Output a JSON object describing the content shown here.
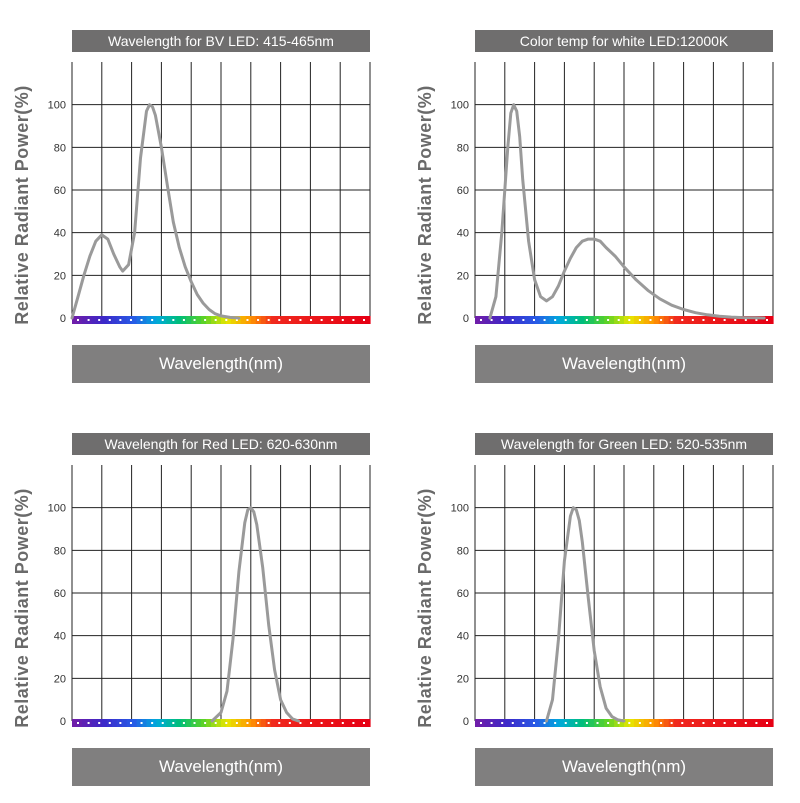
{
  "chart_data": [
    {
      "type": "line",
      "title": "Wavelength for BV LED: 415-465nm",
      "xlabel": "Wavelength(nm)",
      "ylabel": "Relative Radiant Power(%)",
      "ylim": [
        0,
        120
      ],
      "yticks": [
        0,
        20,
        40,
        60,
        80,
        100
      ],
      "x_range": [
        0,
        100
      ],
      "grid": true,
      "series": [
        {
          "name": "BV LED",
          "color": "#9a9a9a",
          "x": [
            0,
            2,
            4,
            6,
            8,
            10,
            12,
            14,
            16,
            17,
            19,
            21,
            23,
            25,
            26,
            27,
            28,
            30,
            32,
            34,
            36,
            38,
            40,
            42,
            44,
            46,
            48,
            50,
            53,
            56
          ],
          "y": [
            0,
            10,
            20,
            29,
            36,
            39,
            37,
            30,
            24,
            22,
            25,
            40,
            75,
            97,
            100,
            99,
            95,
            80,
            62,
            45,
            33,
            24,
            17,
            11,
            7,
            4,
            2,
            1,
            0.3,
            0
          ]
        }
      ]
    },
    {
      "type": "line",
      "title": "Color temp for white LED:12000K",
      "xlabel": "Wavelength(nm)",
      "ylabel": "Relative Radiant Power(%)",
      "ylim": [
        0,
        120
      ],
      "yticks": [
        0,
        20,
        40,
        60,
        80,
        100
      ],
      "x_range": [
        0,
        100
      ],
      "grid": true,
      "series": [
        {
          "name": "White LED 12000K",
          "color": "#9a9a9a",
          "x": [
            5,
            7,
            9,
            11,
            12,
            13,
            14,
            15,
            16,
            18,
            20,
            22,
            24,
            26,
            28,
            30,
            32,
            34,
            36,
            38,
            40,
            42,
            44,
            47,
            50,
            54,
            58,
            62,
            66,
            70,
            74,
            78,
            82,
            86,
            90,
            94,
            97
          ],
          "y": [
            0,
            10,
            40,
            80,
            96,
            100,
            97,
            85,
            65,
            36,
            18,
            10,
            8,
            10,
            15,
            22,
            28,
            33,
            36,
            37,
            37,
            36,
            33,
            29,
            24,
            18,
            13,
            9,
            6,
            4,
            2.5,
            1.5,
            0.8,
            0.4,
            0.2,
            0.1,
            0
          ]
        }
      ]
    },
    {
      "type": "line",
      "title": "Wavelength for Red LED:  620-630nm",
      "xlabel": "Wavelength(nm)",
      "ylabel": "Relative Radiant Power(%)",
      "ylim": [
        0,
        120
      ],
      "yticks": [
        0,
        20,
        40,
        60,
        80,
        100
      ],
      "x_range": [
        0,
        100
      ],
      "grid": true,
      "series": [
        {
          "name": "Red LED",
          "color": "#9a9a9a",
          "x": [
            47,
            50,
            52,
            54,
            56,
            58,
            59,
            60,
            61,
            62,
            64,
            66,
            68,
            70,
            72,
            74,
            76
          ],
          "y": [
            0,
            4,
            14,
            38,
            70,
            93,
            99,
            100,
            98,
            92,
            72,
            45,
            24,
            10,
            4,
            1,
            0
          ]
        }
      ]
    },
    {
      "type": "line",
      "title": "Wavelength for Green LED: 520-535nm",
      "xlabel": "Wavelength(nm)",
      "ylabel": "Relative Radiant Power(%)",
      "ylim": [
        0,
        120
      ],
      "yticks": [
        0,
        20,
        40,
        60,
        80,
        100
      ],
      "x_range": [
        0,
        100
      ],
      "grid": true,
      "series": [
        {
          "name": "Green LED",
          "color": "#9a9a9a",
          "x": [
            24,
            26,
            28,
            30,
            32,
            33,
            34,
            35,
            36,
            38,
            40,
            42,
            44,
            46,
            48,
            50
          ],
          "y": [
            0,
            10,
            38,
            75,
            96,
            100,
            99,
            94,
            84,
            58,
            33,
            16,
            6,
            2,
            0.5,
            0
          ]
        }
      ]
    }
  ]
}
